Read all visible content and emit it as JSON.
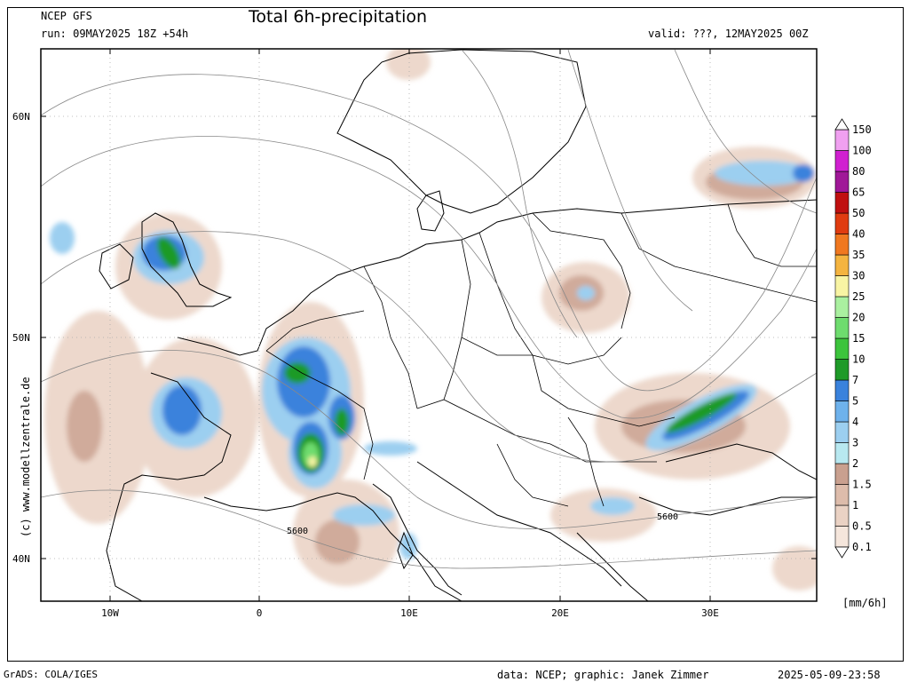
{
  "header": {
    "model": "NCEP GFS",
    "run": "run: 09MAY2025 18Z +54h",
    "title": "Total 6h-precipitation",
    "valid": "valid: ???, 12MAY2025 00Z"
  },
  "axes": {
    "lat_labels": [
      "60N",
      "50N",
      "40N"
    ],
    "lon_labels": [
      "10W",
      "0",
      "10E",
      "20E",
      "30E"
    ]
  },
  "colorbar": {
    "unit": "[mm/6h]",
    "levels": [
      "0.1",
      "0.5",
      "1",
      "1.5",
      "2",
      "3",
      "4",
      "5",
      "7",
      "10",
      "15",
      "20",
      "25",
      "30",
      "35",
      "40",
      "50",
      "65",
      "80",
      "100",
      "150"
    ],
    "colors": [
      "#f5e6dc",
      "#ead2c4",
      "#ddbcab",
      "#c9a08f",
      "#b8e8f0",
      "#9ccff0",
      "#6eb2ec",
      "#3a82dc",
      "#1e9a28",
      "#3cc43c",
      "#6edc6e",
      "#aaf0a0",
      "#f8f4a4",
      "#f4b440",
      "#f07820",
      "#e03c10",
      "#c01010",
      "#a01898",
      "#d020d0",
      "#f0a0f0"
    ]
  },
  "contours": {
    "geopotential_label_a": "5600",
    "geopotential_label_b": "5600"
  },
  "side_credit": "(c) www.modellzentrale.de",
  "footer": {
    "software": "GrADS: COLA/IGES",
    "credit": "data: NCEP; graphic: Janek Zimmer",
    "timestamp": "2025-05-09-23:58"
  }
}
